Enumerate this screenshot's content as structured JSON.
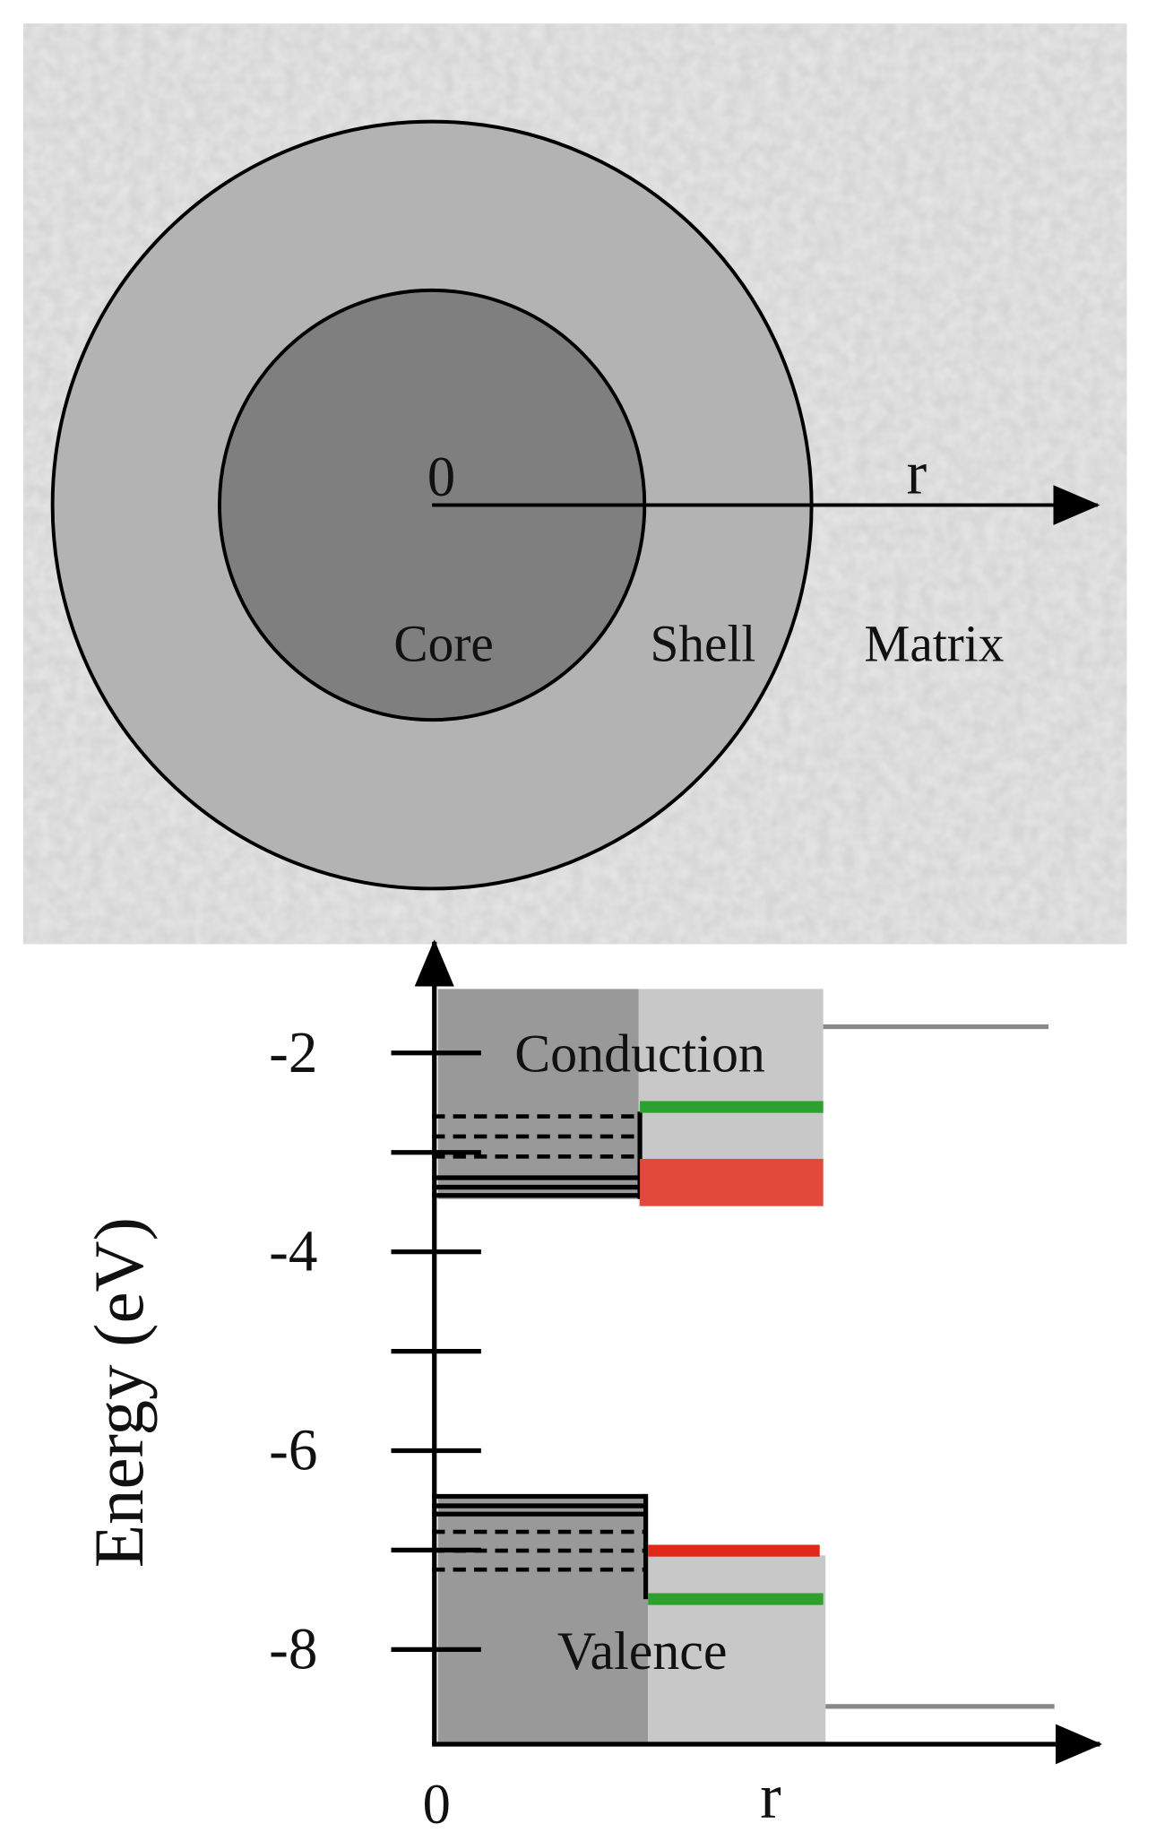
{
  "diagram": {
    "structure": {
      "origin_label": "0",
      "radius_label": "r",
      "core_label": "Core",
      "shell_label": "Shell",
      "matrix_label": "Matrix"
    },
    "energy_plot": {
      "y_label": "Energy (eV)",
      "conduction_label": "Conduction",
      "valence_label": "Valence",
      "x_origin_label": "0",
      "x_label": "r",
      "ylim": [
        -9,
        -1
      ],
      "yticks": [
        -2,
        -4,
        -6,
        -8
      ],
      "minor_yticks": [
        -3,
        -5,
        -7
      ]
    }
  }
}
